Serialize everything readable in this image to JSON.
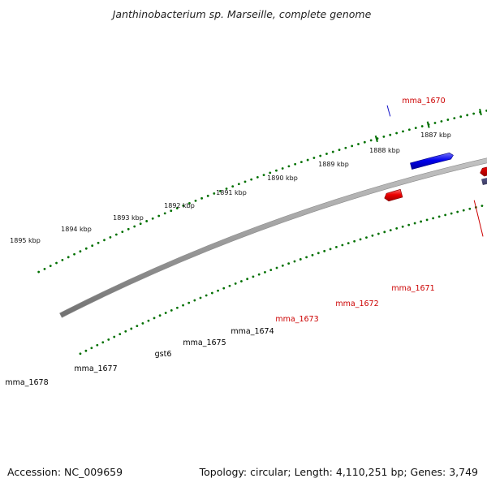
{
  "title": "Janthinobacterium sp. Marseille, complete genome",
  "accession": "Accession: NC_009659",
  "stats": "Topology: circular; Length: 4,110,251 bp; Genes: 3,749",
  "ticks": [
    {
      "label": "1887 kbp"
    },
    {
      "label": "1888 kbp"
    },
    {
      "label": "1889 kbp"
    },
    {
      "label": "1890 kbp"
    },
    {
      "label": "1891 kbp"
    },
    {
      "label": "1892 kbp"
    },
    {
      "label": "1893 kbp"
    },
    {
      "label": "1894 kbp"
    },
    {
      "label": "1895 kbp"
    }
  ],
  "colors": {
    "forward_track": "#0000ee",
    "reverse_track": "#ee0000",
    "label_blue": "#1010c8",
    "label_red": "#cc0000",
    "cds_default": "#b0b0b0",
    "cds_navy": "#5a5a94",
    "cds_cyan": "#00f0f0",
    "cds_olive": "#b4a85a",
    "tick_green": "#007000",
    "backbone": "#8a8a8a"
  },
  "genes": [
    {
      "name": "mma_1670"
    },
    {
      "name": "mma_1671"
    },
    {
      "name": "mma_1672"
    },
    {
      "name": "mma_1673"
    },
    {
      "name": "mma_1674"
    },
    {
      "name": "mma_1675"
    },
    {
      "name": "gst6"
    },
    {
      "name": "mma_1677"
    },
    {
      "name": "mma_1678"
    }
  ]
}
